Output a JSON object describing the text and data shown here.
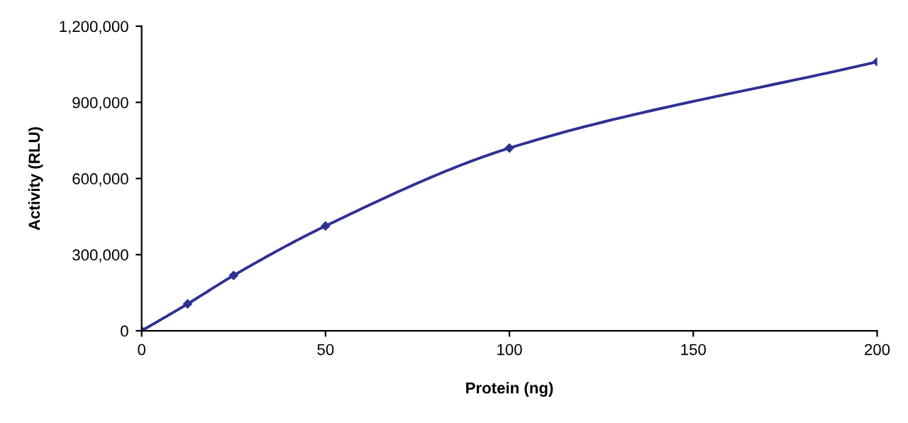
{
  "chart_data": {
    "type": "line",
    "xlabel": "Protein (ng)",
    "ylabel": "Activity (RLU)",
    "x": [
      0,
      12.5,
      25,
      50,
      100,
      200
    ],
    "series": [
      {
        "color": "#2e3192",
        "values": [
          0,
          106000,
          218000,
          413000,
          720000,
          1060000
        ]
      }
    ],
    "xlim": [
      0,
      200
    ],
    "xticks": [
      0,
      50,
      100,
      150,
      200
    ],
    "ylim": [
      0,
      1200000
    ],
    "yticks": [
      {
        "value": 0,
        "label": "0"
      },
      {
        "value": 300000,
        "label": "300,000"
      },
      {
        "value": 600000,
        "label": "600,000"
      },
      {
        "value": 900000,
        "label": "900,000"
      },
      {
        "value": 1200000,
        "label": "1,200,000"
      }
    ],
    "marker": "diamond",
    "line_style": "solid",
    "grid": false
  }
}
